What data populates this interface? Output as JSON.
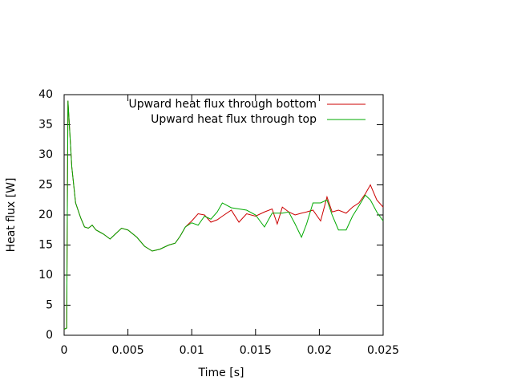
{
  "chart_data": {
    "type": "line",
    "xlabel": "Time [s]",
    "ylabel": "Heat flux [W]",
    "x": [
      0,
      0.0002,
      0.0003,
      0.0006,
      0.0009,
      0.0013,
      0.0016,
      0.0019,
      0.0022,
      0.0025,
      0.0031,
      0.0036,
      0.0041,
      0.0045,
      0.005,
      0.0057,
      0.0063,
      0.0069,
      0.0075,
      0.0082,
      0.0087,
      0.0091,
      0.0095,
      0.01,
      0.0105,
      0.011,
      0.0115,
      0.012,
      0.0124,
      0.0131,
      0.0137,
      0.0143,
      0.015,
      0.0157,
      0.0163,
      0.0167,
      0.0171,
      0.0176,
      0.0181,
      0.0186,
      0.019,
      0.0195,
      0.0201,
      0.0206,
      0.021,
      0.0215,
      0.0221,
      0.0226,
      0.0231,
      0.0236,
      0.024,
      0.0245,
      0.025
    ],
    "series": [
      {
        "name": "Upward heat flux through bottom",
        "color": "#cc0000",
        "values": [
          1,
          1.2,
          39,
          28,
          22,
          19.5,
          18,
          17.8,
          18.3,
          17.5,
          16.8,
          16,
          17,
          17.8,
          17.5,
          16.3,
          14.8,
          14,
          14.3,
          15,
          15.3,
          16.5,
          18,
          19,
          20.2,
          20,
          18.8,
          19.2,
          19.8,
          20.8,
          18.8,
          20.2,
          19.8,
          20.5,
          21,
          18.5,
          21.3,
          20.5,
          20,
          20.3,
          20.5,
          20.8,
          19,
          23,
          20.5,
          20.8,
          20.3,
          21.3,
          22,
          23.5,
          25,
          22.5,
          21.3
        ]
      },
      {
        "name": "Upward heat flux through top",
        "color": "#00aa00",
        "values": [
          1,
          1.2,
          39,
          28,
          22,
          19.5,
          18,
          17.8,
          18.3,
          17.5,
          16.8,
          16,
          17,
          17.8,
          17.5,
          16.3,
          14.8,
          14,
          14.3,
          15,
          15.3,
          16.5,
          18,
          18.7,
          18.3,
          19.8,
          19.3,
          20.5,
          22,
          21.2,
          21,
          20.8,
          20,
          18,
          20.3,
          20.3,
          20.3,
          20.5,
          18.5,
          16.3,
          18.5,
          22,
          22,
          22.5,
          20,
          17.5,
          17.5,
          19.8,
          21.5,
          23.3,
          22.5,
          20.5,
          19
        ]
      }
    ],
    "xlim": [
      0,
      0.025
    ],
    "xticks": [
      0,
      0.005,
      0.01,
      0.015,
      0.02,
      0.025
    ],
    "ylim": [
      0,
      40
    ],
    "yticks": [
      0,
      5,
      10,
      15,
      20,
      25,
      30,
      35,
      40
    ],
    "legend": "top-right"
  }
}
